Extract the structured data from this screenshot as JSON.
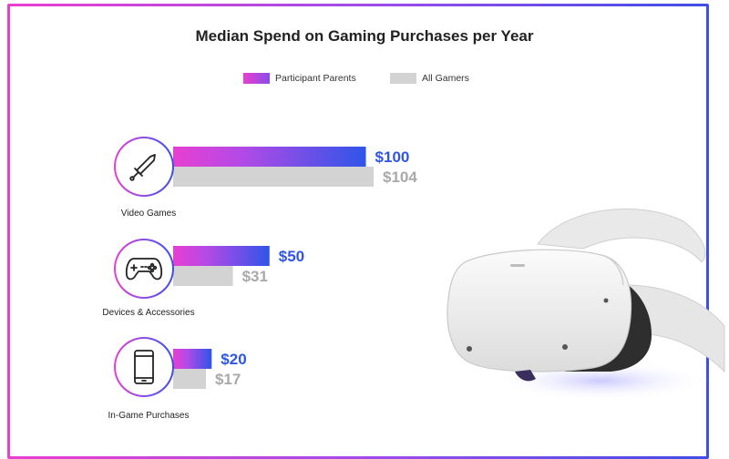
{
  "chart_data": {
    "type": "bar",
    "orientation": "horizontal",
    "title": "Median Spend on Gaming Purchases per Year",
    "categories": [
      "Video Games",
      "Devices & Accessories",
      "In-Game Purchases"
    ],
    "series": [
      {
        "name": "Participant Parents",
        "values": [
          100,
          50,
          20
        ],
        "labels": [
          "$100",
          "$50",
          "$20"
        ],
        "color": "#2f55e8",
        "gradient_start": "#e83fd0"
      },
      {
        "name": "All Gamers",
        "values": [
          104,
          31,
          17
        ],
        "labels": [
          "$104",
          "$31",
          "$17"
        ],
        "color": "#d3d3d3"
      }
    ],
    "xlim": [
      0,
      104
    ],
    "legend_position": "top-center",
    "grid": false
  },
  "icons": [
    "sword-icon",
    "gamepad-icon",
    "smartphone-icon"
  ],
  "decorations": [
    "vr-headset-icon"
  ],
  "colors": {
    "parent_label": "#2f55e8",
    "all_label": "#a9a9a9",
    "frame_start": "#e83fd0",
    "frame_end": "#3d4fe6"
  }
}
